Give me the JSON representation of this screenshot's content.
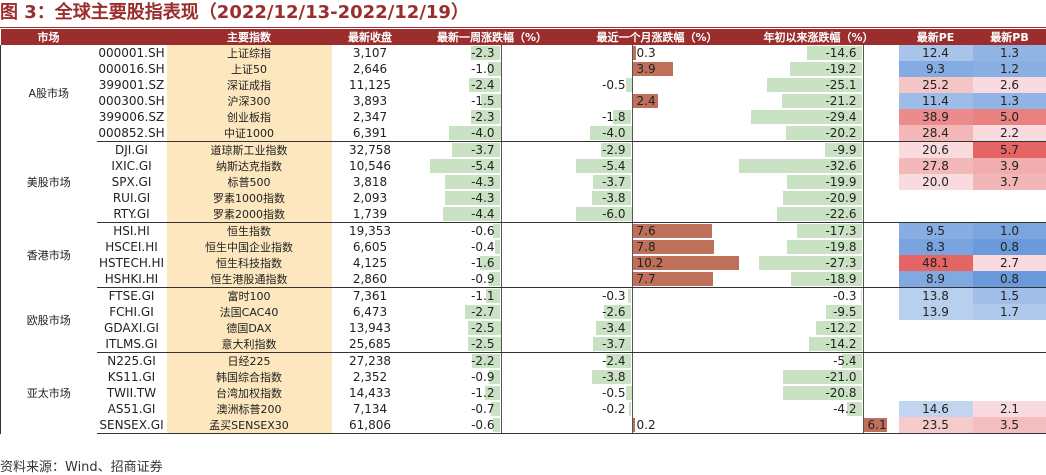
{
  "title": "图 3：全球主要股指表现（2022/12/13-2022/12/19）",
  "source": "资料来源：Wind、招商证券",
  "headers": [
    "市场",
    "",
    "主要指数",
    "最新收盘",
    "最新一周涨跌幅（%）",
    "最近一个月涨跌幅（%）",
    "年初以来涨跌幅（%）",
    "最新PE",
    "最新PB"
  ],
  "colors": {
    "header_bg": "#9B2D2D",
    "name_bg": "#FCE7BE",
    "neg_bar": "#C9E2C3",
    "pos_bar": "#C0705A",
    "pe_pb_blue": "#5B8FD8",
    "pe_pb_red": "#E04A4A"
  },
  "groups": [
    {
      "market": "A股市场",
      "rows": [
        {
          "code": "000001.SH",
          "name": "上证综指",
          "close": "3,107",
          "week": "-2.3",
          "month": "0.3",
          "ytd": "-14.6",
          "pe": "12.4",
          "pb": "1.3"
        },
        {
          "code": "000016.SH",
          "name": "上证50",
          "close": "2,646",
          "week": "-1.0",
          "month": "3.9",
          "ytd": "-19.2",
          "pe": "9.3",
          "pb": "1.2"
        },
        {
          "code": "399001.SZ",
          "name": "深证成指",
          "close": "11,125",
          "week": "-2.4",
          "month": "-0.5",
          "ytd": "-25.1",
          "pe": "25.2",
          "pb": "2.6"
        },
        {
          "code": "000300.SH",
          "name": "沪深300",
          "close": "3,893",
          "week": "-1.5",
          "month": "2.4",
          "ytd": "-21.2",
          "pe": "11.4",
          "pb": "1.3"
        },
        {
          "code": "399006.SZ",
          "name": "创业板指",
          "close": "2,347",
          "week": "-2.3",
          "month": "-1.8",
          "ytd": "-29.4",
          "pe": "38.9",
          "pb": "5.0"
        },
        {
          "code": "000852.SH",
          "name": "中证1000",
          "close": "6,391",
          "week": "-4.0",
          "month": "-4.0",
          "ytd": "-20.2",
          "pe": "28.4",
          "pb": "2.2"
        }
      ]
    },
    {
      "market": "美股市场",
      "rows": [
        {
          "code": "DJI.GI",
          "name": "道琼斯工业指数",
          "close": "32,758",
          "week": "-3.7",
          "month": "-2.9",
          "ytd": "-9.9",
          "pe": "20.6",
          "pb": "5.7"
        },
        {
          "code": "IXIC.GI",
          "name": "纳斯达克指数",
          "close": "10,546",
          "week": "-5.4",
          "month": "-5.4",
          "ytd": "-32.6",
          "pe": "27.8",
          "pb": "3.9"
        },
        {
          "code": "SPX.GI",
          "name": "标普500",
          "close": "3,818",
          "week": "-4.3",
          "month": "-3.7",
          "ytd": "-19.9",
          "pe": "20.0",
          "pb": "3.7"
        },
        {
          "code": "RUI.GI",
          "name": "罗素1000指数",
          "close": "2,093",
          "week": "-4.3",
          "month": "-3.8",
          "ytd": "-20.9",
          "pe": "",
          "pb": ""
        },
        {
          "code": "RTY.GI",
          "name": "罗素2000指数",
          "close": "1,739",
          "week": "-4.4",
          "month": "-6.0",
          "ytd": "-22.6",
          "pe": "",
          "pb": ""
        }
      ]
    },
    {
      "market": "香港市场",
      "rows": [
        {
          "code": "HSI.HI",
          "name": "恒生指数",
          "close": "19,353",
          "week": "-0.6",
          "month": "7.6",
          "ytd": "-17.3",
          "pe": "9.5",
          "pb": "1.0"
        },
        {
          "code": "HSCEI.HI",
          "name": "恒生中国企业指数",
          "close": "6,605",
          "week": "-0.4",
          "month": "7.8",
          "ytd": "-19.8",
          "pe": "8.3",
          "pb": "0.8"
        },
        {
          "code": "HSTECH.HI",
          "name": "恒生科技指数",
          "close": "4,125",
          "week": "-1.6",
          "month": "10.2",
          "ytd": "-27.3",
          "pe": "48.1",
          "pb": "2.7"
        },
        {
          "code": "HSHKI.HI",
          "name": "恒生港股通指数",
          "close": "2,860",
          "week": "-0.9",
          "month": "7.7",
          "ytd": "-18.9",
          "pe": "8.9",
          "pb": "0.8"
        }
      ]
    },
    {
      "market": "欧股市场",
      "rows": [
        {
          "code": "FTSE.GI",
          "name": "富时100",
          "close": "7,361",
          "week": "-1.1",
          "month": "-0.3",
          "ytd": "-0.3",
          "pe": "13.8",
          "pb": "1.5"
        },
        {
          "code": "FCHI.GI",
          "name": "法国CAC40",
          "close": "6,473",
          "week": "-2.7",
          "month": "-2.6",
          "ytd": "-9.5",
          "pe": "13.9",
          "pb": "1.7"
        },
        {
          "code": "GDAXI.GI",
          "name": "德国DAX",
          "close": "13,943",
          "week": "-2.5",
          "month": "-3.4",
          "ytd": "-12.2",
          "pe": "",
          "pb": ""
        },
        {
          "code": "ITLMS.GI",
          "name": "意大利指数",
          "close": "25,685",
          "week": "-2.5",
          "month": "-3.7",
          "ytd": "-14.2",
          "pe": "",
          "pb": ""
        }
      ]
    },
    {
      "market": "亚太市场",
      "rows": [
        {
          "code": "N225.GI",
          "name": "日经225",
          "close": "27,238",
          "week": "-2.2",
          "month": "-2.4",
          "ytd": "-5.4",
          "pe": "",
          "pb": ""
        },
        {
          "code": "KS11.GI",
          "name": "韩国综合指数",
          "close": "2,352",
          "week": "-0.9",
          "month": "-3.8",
          "ytd": "-21.0",
          "pe": "",
          "pb": ""
        },
        {
          "code": "TWII.TW",
          "name": "台湾加权指数",
          "close": "14,433",
          "week": "-1.2",
          "month": "-0.5",
          "ytd": "-20.8",
          "pe": "",
          "pb": ""
        },
        {
          "code": "AS51.GI",
          "name": "澳洲标普200",
          "close": "7,134",
          "week": "-0.7",
          "month": "-0.2",
          "ytd": "-4.2",
          "pe": "14.6",
          "pb": "2.1"
        },
        {
          "code": "SENSEX.GI",
          "name": "孟买SENSEX30",
          "close": "61,806",
          "week": "-0.6",
          "month": "0.2",
          "ytd": "6.1",
          "pe": "23.5",
          "pb": "3.5"
        }
      ]
    }
  ]
}
